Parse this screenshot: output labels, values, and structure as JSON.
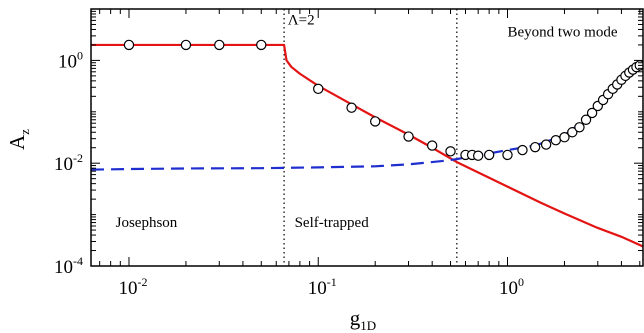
{
  "chart_data": {
    "type": "line",
    "xlabel": "g",
    "xlabel_sub": "1D",
    "ylabel": "A",
    "ylabel_sub": "z",
    "x_scale": "log",
    "y_scale": "log",
    "xlim": [
      0.0063,
      5.2
    ],
    "ylim": [
      0.0001,
      10
    ],
    "x_ticks": [
      {
        "base": "10",
        "exp": "-2",
        "value": 0.01
      },
      {
        "base": "10",
        "exp": "-1",
        "value": 0.1
      },
      {
        "base": "10",
        "exp": "0",
        "value": 1
      }
    ],
    "y_ticks": [
      {
        "base": "10",
        "exp": "-4",
        "value": 0.0001
      },
      {
        "base": "10",
        "exp": "-2",
        "value": 0.01
      },
      {
        "base": "10",
        "exp": "0",
        "value": 1
      }
    ],
    "grid": false,
    "legend": "none",
    "vlines": [
      {
        "x": 0.066,
        "style": "dotted"
      },
      {
        "x": 0.54,
        "style": "dotted"
      }
    ],
    "annotations": [
      {
        "text": "Λ=2",
        "x": 0.069,
        "y": 5.0
      },
      {
        "text": "Beyond two mode",
        "x": 1.0,
        "y": 2.9
      },
      {
        "text": "Josephson",
        "x": 0.0085,
        "y": 0.00058
      },
      {
        "text": "Self-trapped",
        "x": 0.075,
        "y": 0.00058
      }
    ],
    "series": [
      {
        "style": "solid",
        "color": "#e31414",
        "x": [
          0.0063,
          0.066,
          0.068,
          0.072,
          0.08,
          0.1,
          0.15,
          0.2,
          0.3,
          0.4,
          0.54,
          0.8,
          1.0,
          1.5,
          2.0,
          3.0,
          4.0,
          5.2
        ],
        "y": [
          2.0,
          2.0,
          1.0,
          0.75,
          0.55,
          0.32,
          0.14,
          0.078,
          0.036,
          0.02,
          0.0105,
          0.0052,
          0.0035,
          0.0017,
          0.00105,
          0.00055,
          0.00037,
          0.00024
        ]
      },
      {
        "style": "dashed",
        "color": "#1f2fcf",
        "x": [
          0.0063,
          0.01,
          0.02,
          0.05,
          0.1,
          0.2,
          0.3,
          0.45,
          0.54,
          0.65,
          0.8,
          1.0,
          1.4,
          2.0,
          2.5,
          3.0,
          3.5,
          4.0,
          4.5,
          5.2
        ],
        "y": [
          0.0075,
          0.0077,
          0.0079,
          0.008,
          0.0083,
          0.0087,
          0.0095,
          0.011,
          0.012,
          0.0138,
          0.0155,
          0.018,
          0.022,
          0.035,
          0.065,
          0.14,
          0.3,
          0.5,
          0.7,
          0.85
        ]
      },
      {
        "style": "markers",
        "marker": "open-circle",
        "x": [
          0.01,
          0.02,
          0.03,
          0.05,
          0.1,
          0.15,
          0.2,
          0.3,
          0.4,
          0.5,
          0.6,
          0.65,
          0.7,
          0.8,
          1.0,
          1.2,
          1.4,
          1.6,
          1.8,
          2.0,
          2.2,
          2.4,
          2.6,
          2.8,
          3.0,
          3.2,
          3.4,
          3.6,
          3.8,
          4.0,
          4.2,
          4.4,
          4.6,
          4.8,
          5.0
        ],
        "y": [
          2.0,
          2.0,
          2.0,
          2.0,
          0.28,
          0.12,
          0.065,
          0.033,
          0.022,
          0.017,
          0.0145,
          0.0145,
          0.014,
          0.0145,
          0.0145,
          0.018,
          0.0205,
          0.023,
          0.028,
          0.032,
          0.04,
          0.05,
          0.07,
          0.095,
          0.13,
          0.17,
          0.22,
          0.28,
          0.34,
          0.42,
          0.5,
          0.58,
          0.66,
          0.74,
          0.8
        ]
      }
    ]
  }
}
